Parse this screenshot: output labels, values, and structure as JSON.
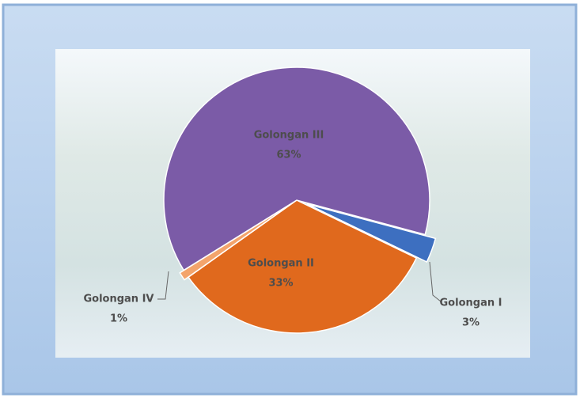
{
  "chart_data": {
    "type": "pie",
    "categories": [
      "Golongan I",
      "Golongan II",
      "Golongan IV",
      "Golongan III"
    ],
    "values": [
      3,
      33,
      1,
      63
    ],
    "value_labels": [
      "3%",
      "33%",
      "1%",
      "63%"
    ],
    "colors": [
      "#3d6fc0",
      "#e0691d",
      "#f3a46c",
      "#7b5ba7"
    ],
    "start_angle": 15
  }
}
